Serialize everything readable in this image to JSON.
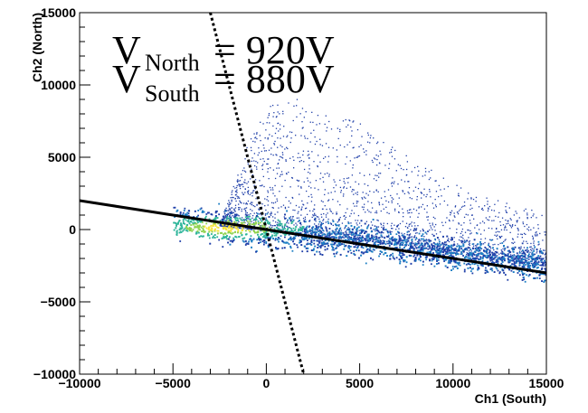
{
  "chart_data": {
    "type": "heatmap",
    "title": "",
    "xlabel": "Ch1 (South)",
    "ylabel": "Ch2 (North)",
    "xlim": [
      -10000,
      15000
    ],
    "ylim": [
      -10000,
      15000
    ],
    "x_ticks": [
      -10000,
      -5000,
      0,
      5000,
      10000,
      15000
    ],
    "y_ticks": [
      -10000,
      -5000,
      0,
      5000,
      10000,
      15000
    ],
    "x_tick_labels": [
      "−10000",
      "−5000",
      "0",
      "5000",
      "10000",
      "15000"
    ],
    "y_tick_labels": [
      "−10000",
      "−5000",
      "0",
      "5000",
      "10000",
      "15000"
    ],
    "grid": false,
    "annotations": [
      {
        "main": "V",
        "sub": "North",
        "rest": " = 920V"
      },
      {
        "main": "V",
        "sub": "South",
        "rest": " = 880V"
      }
    ],
    "colors": {
      "low": "#1f3fa8",
      "mid": "#1e7fc4",
      "high1": "#2fb59a",
      "high2": "#8fd24e",
      "peak": "#f6e33a",
      "lines": "#000000"
    },
    "fit_lines": [
      {
        "style": "solid",
        "points": [
          [
            -10000,
            2000
          ],
          [
            15000,
            -3000
          ]
        ]
      },
      {
        "style": "dotted",
        "points": [
          [
            -3000,
            15000
          ],
          [
            0,
            0
          ],
          [
            2000,
            -10000
          ]
        ]
      }
    ],
    "density_ridge": [
      [
        -5000,
        600
      ],
      [
        -2500,
        300
      ],
      [
        0,
        -100
      ],
      [
        2500,
        -400
      ],
      [
        5000,
        -700
      ],
      [
        7500,
        -1100
      ],
      [
        10000,
        -1600
      ],
      [
        12500,
        -2000
      ],
      [
        15000,
        -2500
      ]
    ],
    "density_peak": [
      -2000,
      200
    ],
    "upper_envelope": [
      [
        -2500,
        500
      ],
      [
        -1000,
        6000
      ],
      [
        0,
        8500
      ],
      [
        1500,
        9500
      ],
      [
        3000,
        8000
      ],
      [
        5000,
        7500
      ],
      [
        7000,
        5500
      ],
      [
        9000,
        4000
      ],
      [
        11000,
        2500
      ],
      [
        15000,
        1200
      ]
    ]
  }
}
